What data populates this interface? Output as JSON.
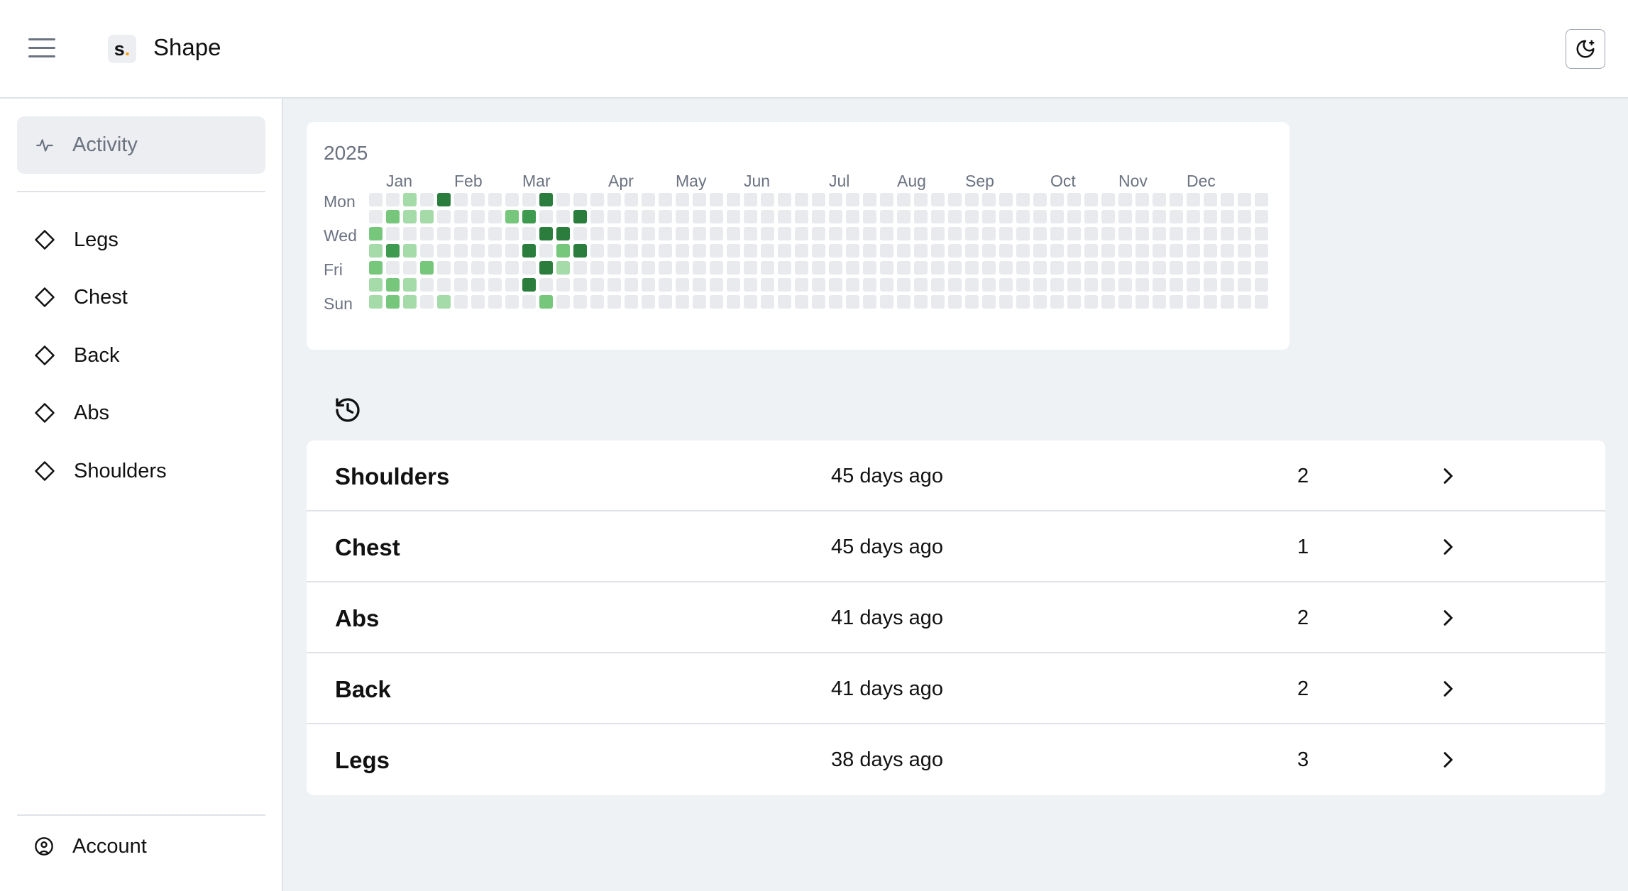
{
  "header": {
    "menu_icon": "hamburger-menu-icon",
    "logo_letter": "s",
    "logo_dot": ".",
    "app_title": "Shape",
    "theme_toggle_icon": "moon-icon"
  },
  "sidebar": {
    "active_item": {
      "label": "Activity",
      "icon": "activity-pulse-icon"
    },
    "items": [
      {
        "label": "Legs",
        "icon": "diamond-icon"
      },
      {
        "label": "Chest",
        "icon": "diamond-icon"
      },
      {
        "label": "Back",
        "icon": "diamond-icon"
      },
      {
        "label": "Abs",
        "icon": "diamond-icon"
      },
      {
        "label": "Shoulders",
        "icon": "diamond-icon"
      }
    ],
    "account": {
      "label": "Account",
      "icon": "user-circle-icon"
    }
  },
  "heatmap": {
    "year": "2025",
    "months": [
      "Jan",
      "Feb",
      "Mar",
      "Apr",
      "May",
      "Jun",
      "Jul",
      "Aug",
      "Sep",
      "Oct",
      "Nov",
      "Dec"
    ],
    "day_labels": [
      "Mon",
      "Wed",
      "Fri",
      "Sun"
    ],
    "levels": [
      "#e8eaed",
      "#a5dba9",
      "#76c77c",
      "#3d9a4e",
      "#2a7d3c"
    ],
    "active_days": [
      {
        "week": 2,
        "day": 0,
        "level": 1
      },
      {
        "week": 4,
        "day": 0,
        "level": 4
      },
      {
        "week": 10,
        "day": 0,
        "level": 4
      },
      {
        "week": 1,
        "day": 1,
        "level": 2
      },
      {
        "week": 2,
        "day": 1,
        "level": 1
      },
      {
        "week": 3,
        "day": 1,
        "level": 1
      },
      {
        "week": 8,
        "day": 1,
        "level": 2
      },
      {
        "week": 9,
        "day": 1,
        "level": 3
      },
      {
        "week": 12,
        "day": 1,
        "level": 4
      },
      {
        "week": 0,
        "day": 2,
        "level": 2
      },
      {
        "week": 10,
        "day": 2,
        "level": 4
      },
      {
        "week": 11,
        "day": 2,
        "level": 4
      },
      {
        "week": 0,
        "day": 3,
        "level": 1
      },
      {
        "week": 1,
        "day": 3,
        "level": 3
      },
      {
        "week": 2,
        "day": 3,
        "level": 1
      },
      {
        "week": 9,
        "day": 3,
        "level": 4
      },
      {
        "week": 11,
        "day": 3,
        "level": 2
      },
      {
        "week": 12,
        "day": 3,
        "level": 4
      },
      {
        "week": 0,
        "day": 4,
        "level": 2
      },
      {
        "week": 3,
        "day": 4,
        "level": 2
      },
      {
        "week": 10,
        "day": 4,
        "level": 4
      },
      {
        "week": 11,
        "day": 4,
        "level": 1
      },
      {
        "week": 0,
        "day": 5,
        "level": 1
      },
      {
        "week": 1,
        "day": 5,
        "level": 2
      },
      {
        "week": 2,
        "day": 5,
        "level": 1
      },
      {
        "week": 9,
        "day": 5,
        "level": 4
      },
      {
        "week": 0,
        "day": 6,
        "level": 1
      },
      {
        "week": 1,
        "day": 6,
        "level": 2
      },
      {
        "week": 2,
        "day": 6,
        "level": 1
      },
      {
        "week": 4,
        "day": 6,
        "level": 1
      },
      {
        "week": 10,
        "day": 6,
        "level": 2
      }
    ]
  },
  "history": {
    "icon": "history-clock-icon",
    "rows": [
      {
        "name": "Shoulders",
        "when": "45 days ago",
        "count": "2"
      },
      {
        "name": "Chest",
        "when": "45 days ago",
        "count": "1"
      },
      {
        "name": "Abs",
        "when": "41 days ago",
        "count": "2"
      },
      {
        "name": "Back",
        "when": "41 days ago",
        "count": "2"
      },
      {
        "name": "Legs",
        "when": "38 days ago",
        "count": "3"
      }
    ],
    "row_icon": "chevron-right-icon"
  }
}
